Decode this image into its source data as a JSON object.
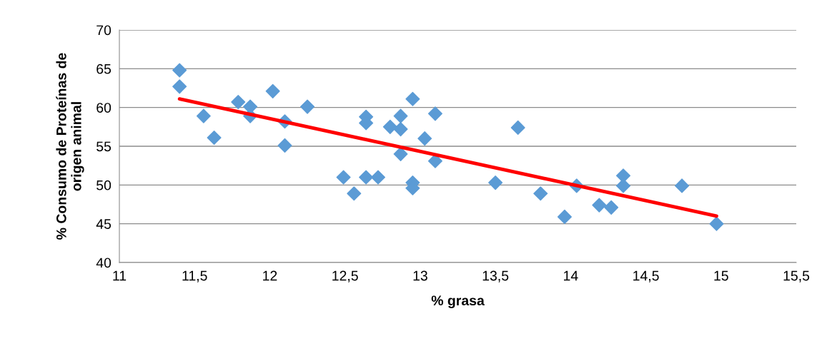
{
  "chart_data": {
    "type": "scatter",
    "xlabel": "% grasa",
    "ylabel": "% Consumo de Proteínas de\norigen animal",
    "xlim": [
      11,
      15.5
    ],
    "ylim": [
      40,
      70
    ],
    "xticks": [
      {
        "value": 11,
        "label": "11"
      },
      {
        "value": 11.5,
        "label": "11,5"
      },
      {
        "value": 12,
        "label": "12"
      },
      {
        "value": 12.5,
        "label": "12,5"
      },
      {
        "value": 13,
        "label": "13"
      },
      {
        "value": 13.5,
        "label": "13,5"
      },
      {
        "value": 14,
        "label": "14"
      },
      {
        "value": 14.5,
        "label": "14,5"
      },
      {
        "value": 15,
        "label": "15"
      },
      {
        "value": 15.5,
        "label": "15,5"
      }
    ],
    "yticks": [
      40,
      45,
      50,
      55,
      60,
      65,
      70
    ],
    "grid": "y",
    "legend": false,
    "marker": "diamond",
    "series": [
      {
        "color": "#5b9bd5",
        "x": [
          11.4,
          11.4,
          11.56,
          11.63,
          11.79,
          11.87,
          11.87,
          12.02,
          12.1,
          12.1,
          12.25,
          12.49,
          12.56,
          12.64,
          12.64,
          12.64,
          12.72,
          12.8,
          12.87,
          12.87,
          12.87,
          12.95,
          12.95,
          12.95,
          13.03,
          13.1,
          13.1,
          13.5,
          13.65,
          13.8,
          13.96,
          14.04,
          14.19,
          14.27,
          14.35,
          14.35,
          14.74,
          14.97
        ],
        "values": [
          64.8,
          62.7,
          58.9,
          56.1,
          60.7,
          60.1,
          58.9,
          62.1,
          58.2,
          55.1,
          60.1,
          51.0,
          48.9,
          58.8,
          58.0,
          51.0,
          51.0,
          57.5,
          58.9,
          57.2,
          54.0,
          61.1,
          50.3,
          49.6,
          56.0,
          59.2,
          53.1,
          50.3,
          57.4,
          48.9,
          45.9,
          49.9,
          47.4,
          47.1,
          51.2,
          49.9,
          49.9,
          45.0
        ]
      },
      {
        "type": "line",
        "color": "#ff0000",
        "x": [
          11.4,
          14.97
        ],
        "values": [
          61.1,
          46.0
        ],
        "marker": "none",
        "line_style": "solid"
      }
    ]
  }
}
